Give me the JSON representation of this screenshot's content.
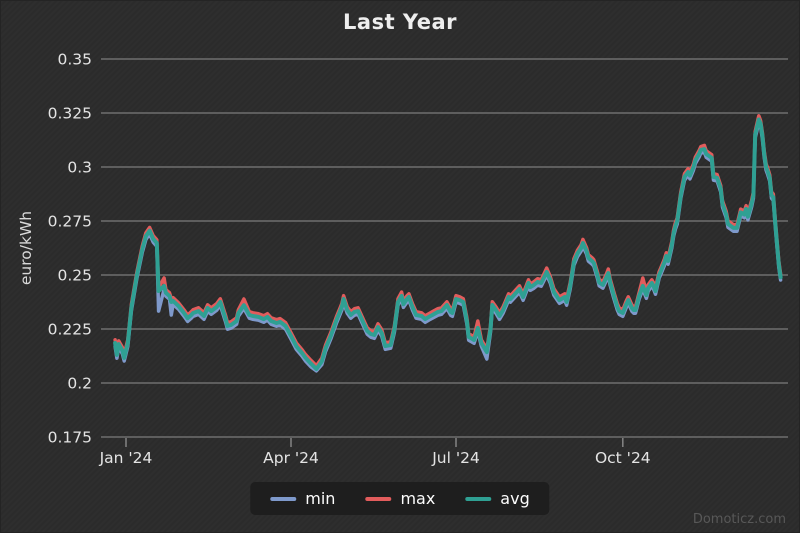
{
  "watermark": "Domoticz.com",
  "chart_data": {
    "type": "line",
    "title": "Last Year",
    "ylabel": "euro/kWh",
    "ylim": [
      0.175,
      0.35
    ],
    "yticks": [
      0.35,
      0.325,
      0.3,
      0.275,
      0.25,
      0.225,
      0.2,
      0.175
    ],
    "grid": "horizontal-only",
    "x_unit": "days_since_2024-01-01",
    "xticks": [
      {
        "label": "Jan '24",
        "day": 0
      },
      {
        "label": "Apr '24",
        "day": 91
      },
      {
        "label": "Jul '24",
        "day": 182
      },
      {
        "label": "Oct '24",
        "day": 274
      }
    ],
    "legend": [
      {
        "name": "min",
        "color": "#7e99cb"
      },
      {
        "name": "max",
        "color": "#e25c5c"
      },
      {
        "name": "avg",
        "color": "#2fa093"
      }
    ],
    "legend_position": "bottom-center",
    "points_format": [
      "day",
      "min",
      "max",
      "avg"
    ],
    "points": [
      [
        -6,
        0.217,
        0.22,
        0.2185
      ],
      [
        -5,
        0.2115,
        0.2145,
        0.213
      ],
      [
        -4,
        0.2165,
        0.2195,
        0.218
      ],
      [
        -2,
        0.2135,
        0.2165,
        0.215
      ],
      [
        -1,
        0.2102,
        0.2131,
        0.2116
      ],
      [
        1,
        0.217,
        0.22,
        0.2185
      ],
      [
        3,
        0.2335,
        0.2365,
        0.235
      ],
      [
        6,
        0.2485,
        0.2515,
        0.25
      ],
      [
        9,
        0.2605,
        0.2635,
        0.262
      ],
      [
        11,
        0.2665,
        0.2695,
        0.268
      ],
      [
        13,
        0.269,
        0.272,
        0.2705
      ],
      [
        15,
        0.2652,
        0.2682,
        0.2667
      ],
      [
        17,
        0.2633,
        0.2663,
        0.2648
      ],
      [
        18,
        0.2333,
        0.2441,
        0.2426
      ],
      [
        21,
        0.2434,
        0.2486,
        0.2449
      ],
      [
        22,
        0.2402,
        0.2432,
        0.2417
      ],
      [
        24,
        0.2388,
        0.2418,
        0.2403
      ],
      [
        25,
        0.2315,
        0.239,
        0.2375
      ],
      [
        26,
        0.2365,
        0.2395,
        0.238
      ],
      [
        29,
        0.2341,
        0.2371,
        0.2356
      ],
      [
        32,
        0.2309,
        0.2339,
        0.2324
      ],
      [
        34,
        0.2285,
        0.2315,
        0.23
      ],
      [
        36,
        0.23,
        0.233,
        0.2315
      ],
      [
        37,
        0.2309,
        0.2339,
        0.2324
      ],
      [
        40,
        0.2318,
        0.2348,
        0.2333
      ],
      [
        43,
        0.2295,
        0.2325,
        0.231
      ],
      [
        45,
        0.2332,
        0.2362,
        0.2347
      ],
      [
        47,
        0.2318,
        0.2348,
        0.2333
      ],
      [
        50,
        0.2337,
        0.2367,
        0.2352
      ],
      [
        52,
        0.236,
        0.239,
        0.2375
      ],
      [
        55,
        0.2281,
        0.2311,
        0.2296
      ],
      [
        56,
        0.2249,
        0.2279,
        0.2264
      ],
      [
        58,
        0.2254,
        0.2284,
        0.2269
      ],
      [
        61,
        0.2272,
        0.2302,
        0.2287
      ],
      [
        62,
        0.2309,
        0.2339,
        0.2324
      ],
      [
        65,
        0.2345,
        0.2389,
        0.236
      ],
      [
        68,
        0.23,
        0.233,
        0.2315
      ],
      [
        70,
        0.2295,
        0.2325,
        0.231
      ],
      [
        73,
        0.2291,
        0.2321,
        0.2306
      ],
      [
        76,
        0.2281,
        0.2311,
        0.2296
      ],
      [
        78,
        0.2291,
        0.2321,
        0.2306
      ],
      [
        80,
        0.2272,
        0.2302,
        0.2287
      ],
      [
        83,
        0.2263,
        0.2293,
        0.2278
      ],
      [
        85,
        0.2268,
        0.2298,
        0.2283
      ],
      [
        88,
        0.2249,
        0.2279,
        0.2264
      ],
      [
        91,
        0.2203,
        0.2233,
        0.2218
      ],
      [
        94,
        0.2155,
        0.2185,
        0.217
      ],
      [
        97,
        0.2125,
        0.2155,
        0.214
      ],
      [
        99,
        0.2102,
        0.2132,
        0.2117
      ],
      [
        102,
        0.2075,
        0.2105,
        0.209
      ],
      [
        105,
        0.2056,
        0.208,
        0.2065
      ],
      [
        108,
        0.2085,
        0.2115,
        0.21
      ],
      [
        110,
        0.2145,
        0.2175,
        0.216
      ],
      [
        113,
        0.2205,
        0.2235,
        0.222
      ],
      [
        116,
        0.2275,
        0.2305,
        0.229
      ],
      [
        119,
        0.2337,
        0.2367,
        0.2352
      ],
      [
        120,
        0.2374,
        0.2404,
        0.2389
      ],
      [
        122,
        0.2323,
        0.2353,
        0.2338
      ],
      [
        124,
        0.23,
        0.233,
        0.2315
      ],
      [
        126,
        0.2314,
        0.2344,
        0.2329
      ],
      [
        128,
        0.2318,
        0.2348,
        0.2333
      ],
      [
        131,
        0.2263,
        0.2293,
        0.2278
      ],
      [
        133,
        0.2226,
        0.2256,
        0.2241
      ],
      [
        135,
        0.2212,
        0.2242,
        0.2227
      ],
      [
        137,
        0.2207,
        0.2237,
        0.2222
      ],
      [
        139,
        0.2244,
        0.2274,
        0.2259
      ],
      [
        141,
        0.2217,
        0.2247,
        0.2232
      ],
      [
        143,
        0.2156,
        0.2186,
        0.2171
      ],
      [
        146,
        0.2161,
        0.2191,
        0.2176
      ],
      [
        148,
        0.2235,
        0.2265,
        0.225
      ],
      [
        150,
        0.236,
        0.239,
        0.2375
      ],
      [
        152,
        0.2388,
        0.2421,
        0.2403
      ],
      [
        153,
        0.235,
        0.238,
        0.2365
      ],
      [
        155,
        0.2374,
        0.2404,
        0.2389
      ],
      [
        156,
        0.2383,
        0.2413,
        0.2398
      ],
      [
        158,
        0.2337,
        0.2367,
        0.2352
      ],
      [
        160,
        0.23,
        0.233,
        0.2315
      ],
      [
        163,
        0.2295,
        0.2325,
        0.231
      ],
      [
        165,
        0.2281,
        0.2311,
        0.2296
      ],
      [
        167,
        0.2291,
        0.2321,
        0.2306
      ],
      [
        169,
        0.23,
        0.233,
        0.2315
      ],
      [
        172,
        0.2314,
        0.2344,
        0.2329
      ],
      [
        174,
        0.2318,
        0.2348,
        0.2333
      ],
      [
        177,
        0.2346,
        0.2376,
        0.2361
      ],
      [
        179,
        0.2314,
        0.2344,
        0.2329
      ],
      [
        180,
        0.2309,
        0.2339,
        0.2324
      ],
      [
        182,
        0.2374,
        0.2404,
        0.2389
      ],
      [
        184,
        0.2369,
        0.2399,
        0.2384
      ],
      [
        186,
        0.236,
        0.239,
        0.2375
      ],
      [
        188,
        0.2272,
        0.2302,
        0.2287
      ],
      [
        189,
        0.2198,
        0.2228,
        0.2213
      ],
      [
        191,
        0.2189,
        0.2219,
        0.2204
      ],
      [
        192,
        0.2184,
        0.2214,
        0.2199
      ],
      [
        194,
        0.224,
        0.2287,
        0.2255
      ],
      [
        196,
        0.217,
        0.22,
        0.2185
      ],
      [
        199,
        0.2111,
        0.2158,
        0.2143
      ],
      [
        201,
        0.2235,
        0.2265,
        0.225
      ],
      [
        202,
        0.2346,
        0.2376,
        0.2361
      ],
      [
        204,
        0.2323,
        0.2353,
        0.2338
      ],
      [
        206,
        0.2295,
        0.2325,
        0.231
      ],
      [
        208,
        0.2323,
        0.2353,
        0.2338
      ],
      [
        211,
        0.2383,
        0.2413,
        0.2398
      ],
      [
        212,
        0.2374,
        0.2404,
        0.2389
      ],
      [
        214,
        0.2392,
        0.2422,
        0.2407
      ],
      [
        217,
        0.242,
        0.245,
        0.2435
      ],
      [
        219,
        0.2383,
        0.2413,
        0.2398
      ],
      [
        222,
        0.2448,
        0.2478,
        0.2463
      ],
      [
        223,
        0.2429,
        0.2459,
        0.2444
      ],
      [
        225,
        0.2439,
        0.2469,
        0.2454
      ],
      [
        227,
        0.2453,
        0.2483,
        0.2468
      ],
      [
        229,
        0.2448,
        0.2478,
        0.2463
      ],
      [
        232,
        0.2499,
        0.2532,
        0.2514
      ],
      [
        234,
        0.2462,
        0.2492,
        0.2477
      ],
      [
        236,
        0.2406,
        0.2436,
        0.2421
      ],
      [
        239,
        0.2369,
        0.2399,
        0.2384
      ],
      [
        242,
        0.2383,
        0.2413,
        0.2398
      ],
      [
        243,
        0.236,
        0.239,
        0.2375
      ],
      [
        245,
        0.2435,
        0.2465,
        0.245
      ],
      [
        247,
        0.2545,
        0.2575,
        0.256
      ],
      [
        249,
        0.2585,
        0.2615,
        0.26
      ],
      [
        251,
        0.261,
        0.264,
        0.2625
      ],
      [
        252,
        0.2633,
        0.2665,
        0.2648
      ],
      [
        254,
        0.2596,
        0.2626,
        0.2611
      ],
      [
        255,
        0.2564,
        0.2594,
        0.2579
      ],
      [
        257,
        0.255,
        0.258,
        0.2565
      ],
      [
        258,
        0.2541,
        0.2571,
        0.2556
      ],
      [
        260,
        0.2485,
        0.2515,
        0.25
      ],
      [
        261,
        0.245,
        0.248,
        0.2465
      ],
      [
        263,
        0.2439,
        0.2469,
        0.2454
      ],
      [
        265,
        0.2476,
        0.2506,
        0.2491
      ],
      [
        266,
        0.2494,
        0.2528,
        0.2509
      ],
      [
        267,
        0.2453,
        0.2483,
        0.2468
      ],
      [
        269,
        0.2392,
        0.2422,
        0.2407
      ],
      [
        271,
        0.2337,
        0.2367,
        0.2352
      ],
      [
        272,
        0.2318,
        0.2348,
        0.2333
      ],
      [
        274,
        0.2309,
        0.2339,
        0.2324
      ],
      [
        276,
        0.2351,
        0.2381,
        0.2366
      ],
      [
        277,
        0.2369,
        0.2399,
        0.2384
      ],
      [
        279,
        0.2332,
        0.2362,
        0.2347
      ],
      [
        280,
        0.2323,
        0.2353,
        0.2338
      ],
      [
        281,
        0.2323,
        0.2353,
        0.2338
      ],
      [
        283,
        0.2388,
        0.2418,
        0.2403
      ],
      [
        285,
        0.2434,
        0.2486,
        0.2449
      ],
      [
        287,
        0.2392,
        0.2422,
        0.2407
      ],
      [
        288,
        0.2425,
        0.2455,
        0.244
      ],
      [
        290,
        0.2448,
        0.2478,
        0.2463
      ],
      [
        291,
        0.2434,
        0.2464,
        0.2449
      ],
      [
        292,
        0.2411,
        0.2441,
        0.2426
      ],
      [
        294,
        0.2485,
        0.2515,
        0.25
      ],
      [
        295,
        0.2504,
        0.2534,
        0.2519
      ],
      [
        297,
        0.2545,
        0.2575,
        0.256
      ],
      [
        298,
        0.2573,
        0.2603,
        0.2588
      ],
      [
        299,
        0.255,
        0.258,
        0.2565
      ],
      [
        301,
        0.2625,
        0.2655,
        0.264
      ],
      [
        302,
        0.2679,
        0.2709,
        0.2694
      ],
      [
        303,
        0.2712,
        0.2742,
        0.2727
      ],
      [
        304,
        0.2735,
        0.2765,
        0.275
      ],
      [
        306,
        0.2855,
        0.2885,
        0.287
      ],
      [
        308,
        0.2939,
        0.2969,
        0.2954
      ],
      [
        310,
        0.2962,
        0.2992,
        0.2977
      ],
      [
        311,
        0.2945,
        0.2975,
        0.296
      ],
      [
        313,
        0.2985,
        0.3015,
        0.3
      ],
      [
        314,
        0.3015,
        0.3045,
        0.303
      ],
      [
        316,
        0.3045,
        0.3075,
        0.306
      ],
      [
        317,
        0.3064,
        0.3094,
        0.3079
      ],
      [
        319,
        0.3068,
        0.31,
        0.3083
      ],
      [
        320,
        0.3045,
        0.3075,
        0.306
      ],
      [
        323,
        0.3027,
        0.3057,
        0.3042
      ],
      [
        324,
        0.2939,
        0.2969,
        0.2954
      ],
      [
        326,
        0.2935,
        0.2965,
        0.295
      ],
      [
        328,
        0.2885,
        0.2915,
        0.29
      ],
      [
        329,
        0.2814,
        0.2844,
        0.2829
      ],
      [
        331,
        0.2765,
        0.2795,
        0.278
      ],
      [
        332,
        0.2721,
        0.2751,
        0.2736
      ],
      [
        335,
        0.2703,
        0.2733,
        0.2718
      ],
      [
        337,
        0.2703,
        0.2733,
        0.2718
      ],
      [
        339,
        0.2775,
        0.2805,
        0.279
      ],
      [
        341,
        0.2765,
        0.2795,
        0.278
      ],
      [
        342,
        0.2791,
        0.2821,
        0.2806
      ],
      [
        343,
        0.2755,
        0.2785,
        0.277
      ],
      [
        345,
        0.2815,
        0.2845,
        0.283
      ],
      [
        346,
        0.2855,
        0.2885,
        0.287
      ],
      [
        347,
        0.3135,
        0.3165,
        0.315
      ],
      [
        349,
        0.3205,
        0.3237,
        0.322
      ],
      [
        350,
        0.3185,
        0.3215,
        0.32
      ],
      [
        351,
        0.3129,
        0.3159,
        0.3144
      ],
      [
        352,
        0.3045,
        0.3075,
        0.306
      ],
      [
        353,
        0.2985,
        0.3015,
        0.3
      ],
      [
        354,
        0.2962,
        0.2992,
        0.2977
      ],
      [
        355,
        0.2935,
        0.2965,
        0.295
      ],
      [
        356,
        0.2855,
        0.2885,
        0.287
      ],
      [
        357,
        0.2845,
        0.2875,
        0.286
      ],
      [
        358,
        0.2735,
        0.2765,
        0.275
      ],
      [
        359,
        0.2635,
        0.2665,
        0.265
      ],
      [
        360,
        0.2535,
        0.2565,
        0.255
      ],
      [
        361,
        0.2477,
        0.2505,
        0.249
      ]
    ]
  },
  "style": {
    "background": "#2c2c2c",
    "grid_color": "#6f6f6f",
    "tick_label_color": "#e4e4e4",
    "title_color": "#eeeeee",
    "legend_bg": "#1e1e1e",
    "watermark_color": "#585858"
  }
}
